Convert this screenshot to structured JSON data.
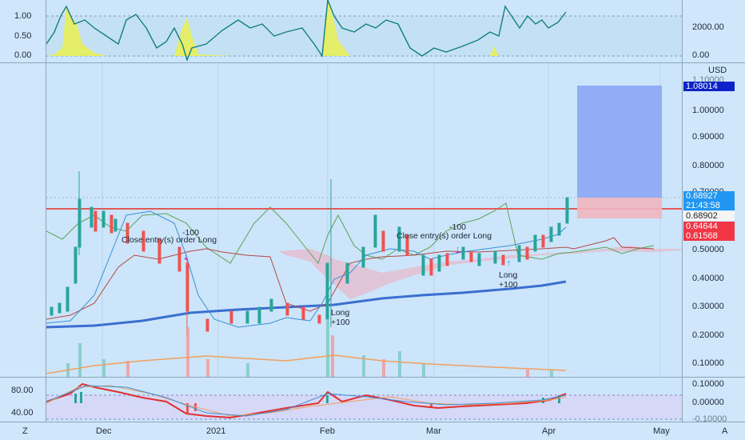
{
  "top_indicator": {
    "left_ticks": [
      "1.00",
      "0.50",
      "0.00"
    ],
    "right_ticks": [
      "2000.00",
      "0.00"
    ]
  },
  "main_chart": {
    "currency": "USD",
    "price_ticks": [
      "1.00000",
      "0.90000",
      "0.80000",
      "0.70000",
      "0.50000",
      "0.40000",
      "0.30000",
      "0.20000",
      "0.10000"
    ],
    "hidden_tick": "1.10000",
    "price_tags": {
      "target": {
        "value": "1.08014",
        "color": "#0d22c9"
      },
      "last": {
        "value": "0.68927",
        "countdown": "21:43:58",
        "color": "#2196f3"
      },
      "entry": {
        "value": "0.68902",
        "color": "#2b2b2b"
      },
      "stop1": {
        "value": "0.64644",
        "color": "#f23645"
      },
      "stop2": {
        "value": "0.61568",
        "color": "#f23645"
      }
    },
    "annotations": {
      "close_1": "Close entry(s) order Long",
      "qty_1": "-100",
      "close_2": "Close entry(s) order Long",
      "qty_2": "-100",
      "long_1": "Long",
      "long_1_qty": "+100",
      "long_2": "Long",
      "long_2_qty": "+100"
    }
  },
  "bottom_indicator": {
    "left_ticks": [
      "80.00",
      "40.00"
    ],
    "right_ticks": [
      "0.10000",
      "0.00000",
      "-0.10000"
    ]
  },
  "time_axis": {
    "labels": [
      "Dec",
      "2021",
      "Feb",
      "Mar",
      "Apr",
      "May"
    ],
    "left_button": "Z",
    "right_button": "A"
  },
  "colors": {
    "up": "#26a69a",
    "down": "#ef5350",
    "ma_long": "#3a6fcf",
    "resistance": "#e05a5a",
    "target_zone": "#8aa6f5",
    "stop_zone": "#f0b6c0"
  }
}
